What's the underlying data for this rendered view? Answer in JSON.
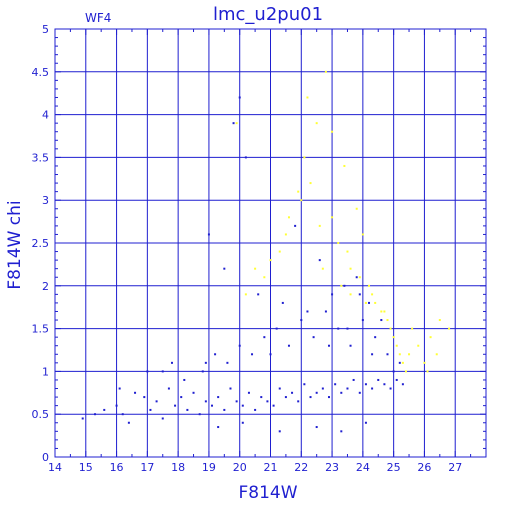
{
  "chart_data": {
    "type": "scatter",
    "title": "lmc_u2pu01",
    "panel_label": "WF4",
    "xlabel": "F814W",
    "ylabel": "F814W chi",
    "xlim": [
      14,
      28
    ],
    "ylim": [
      0,
      5
    ],
    "x_ticks": [
      "14",
      "15",
      "16",
      "17",
      "18",
      "19",
      "20",
      "21",
      "22",
      "23",
      "24",
      "25",
      "26",
      "27"
    ],
    "y_ticks": [
      "0",
      "0.5",
      "1",
      "1.5",
      "2",
      "2.5",
      "3",
      "3.5",
      "4",
      "4.5",
      "5"
    ],
    "grid": true,
    "colors": {
      "axis": "#1f1fd0",
      "series_main": "#1f1fd0",
      "series_flagged": "#ffff33"
    },
    "series": [
      {
        "color": "#1f1fd0",
        "x": [
          14.9,
          15.3,
          15.6,
          16.0,
          16.2,
          16.4,
          16.6,
          16.9,
          17.1,
          17.3,
          17.5,
          17.7,
          17.9,
          18.1,
          18.3,
          18.5,
          18.7,
          18.9,
          19.1,
          19.3,
          19.5,
          19.7,
          19.9,
          20.1,
          20.3,
          20.5,
          20.7,
          20.9,
          21.1,
          21.3,
          21.5,
          21.7,
          21.9,
          22.1,
          22.3,
          22.5,
          22.7,
          22.9,
          23.1,
          23.3,
          23.5,
          23.7,
          23.9,
          24.1,
          24.3,
          24.5,
          24.7,
          24.9,
          25.1,
          25.3,
          16.1,
          17.0,
          17.8,
          18.8,
          19.2,
          19.6,
          20.0,
          20.4,
          20.8,
          21.2,
          21.6,
          22.0,
          22.4,
          22.8,
          23.2,
          23.6,
          24.0,
          24.4,
          24.8,
          25.2,
          20.0,
          19.8,
          20.2,
          21.8,
          22.6,
          23.4,
          23.9,
          24.2,
          19.0,
          19.5,
          20.6,
          21.4,
          22.2,
          23.0,
          23.8,
          24.6,
          17.5,
          18.2,
          18.9,
          21.0,
          22.9,
          23.5,
          24.3,
          25.0,
          19.3,
          20.1,
          21.3,
          22.5,
          23.3,
          24.1
        ],
        "y": [
          0.45,
          0.5,
          0.55,
          0.6,
          0.5,
          0.4,
          0.75,
          0.7,
          0.55,
          0.65,
          0.45,
          0.8,
          0.6,
          0.7,
          0.55,
          0.75,
          0.5,
          0.65,
          0.6,
          0.7,
          0.55,
          0.8,
          0.65,
          0.6,
          0.75,
          0.55,
          0.7,
          0.65,
          0.6,
          0.8,
          0.7,
          0.75,
          0.65,
          0.85,
          0.7,
          0.75,
          0.8,
          0.7,
          0.85,
          0.75,
          0.8,
          0.9,
          0.75,
          0.85,
          0.8,
          0.9,
          0.85,
          0.8,
          0.9,
          0.85,
          0.8,
          1.0,
          1.1,
          1.0,
          1.2,
          1.1,
          1.3,
          1.2,
          1.4,
          1.5,
          1.3,
          1.6,
          1.4,
          1.7,
          1.5,
          1.3,
          1.6,
          1.4,
          1.2,
          1.1,
          4.2,
          3.9,
          3.5,
          2.7,
          2.3,
          2.0,
          1.9,
          1.8,
          2.6,
          2.2,
          1.9,
          1.8,
          1.7,
          1.9,
          2.1,
          1.6,
          1.0,
          0.9,
          1.1,
          1.2,
          1.3,
          1.5,
          1.2,
          1.0,
          0.35,
          0.4,
          0.3,
          0.35,
          0.3,
          0.4
        ]
      },
      {
        "color": "#ffff33",
        "x": [
          20.2,
          20.8,
          21.3,
          21.6,
          21.9,
          22.1,
          22.3,
          22.6,
          22.8,
          23.0,
          23.2,
          23.4,
          23.6,
          23.8,
          24.0,
          24.2,
          24.4,
          24.6,
          24.8,
          25.0,
          25.2,
          25.4,
          25.6,
          25.8,
          26.0,
          26.2,
          26.5,
          26.8,
          22.2,
          22.5,
          23.0,
          23.5,
          23.9,
          24.3,
          24.7,
          25.1,
          25.3,
          21.0,
          21.5,
          22.0,
          22.7,
          23.3,
          24.1,
          24.9,
          25.5,
          26.1,
          26.4,
          19.9,
          20.5,
          23.6
        ],
        "y": [
          1.9,
          2.1,
          2.4,
          2.8,
          3.1,
          3.5,
          3.2,
          2.7,
          4.5,
          3.8,
          2.5,
          3.4,
          2.2,
          2.9,
          2.6,
          2.0,
          1.8,
          1.7,
          1.6,
          1.4,
          1.2,
          1.0,
          1.5,
          1.3,
          1.1,
          1.4,
          1.6,
          1.5,
          4.2,
          3.9,
          2.8,
          2.4,
          2.1,
          1.9,
          1.7,
          1.3,
          1.1,
          2.3,
          2.6,
          3.0,
          2.2,
          2.0,
          1.8,
          1.5,
          1.2,
          1.0,
          1.2,
          3.9,
          2.2,
          1.9
        ]
      }
    ]
  }
}
